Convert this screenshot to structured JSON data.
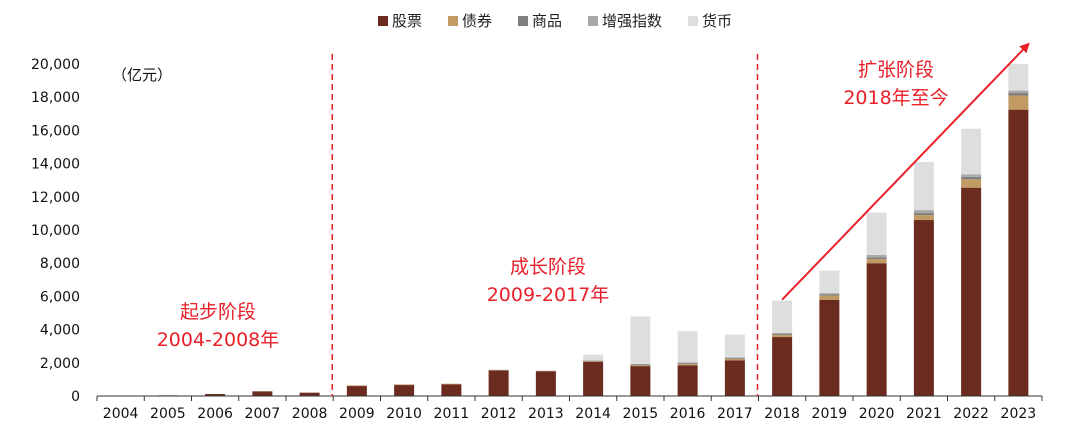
{
  "chart_data": {
    "type": "bar",
    "stacked": true,
    "unit_label": "（亿元）",
    "categories": [
      "2004",
      "2005",
      "2006",
      "2007",
      "2008",
      "2009",
      "2010",
      "2011",
      "2012",
      "2013",
      "2014",
      "2015",
      "2016",
      "2017",
      "2018",
      "2019",
      "2020",
      "2021",
      "2022",
      "2023"
    ],
    "series": [
      {
        "name": "股票",
        "color": "#6b2b1f",
        "values": [
          30,
          40,
          120,
          280,
          200,
          620,
          680,
          720,
          1560,
          1500,
          2050,
          1800,
          1850,
          2150,
          3550,
          5800,
          8000,
          10600,
          12550,
          17250
        ]
      },
      {
        "name": "债券",
        "color": "#c29a63",
        "values": [
          0,
          0,
          0,
          0,
          0,
          20,
          20,
          20,
          30,
          40,
          50,
          60,
          70,
          80,
          120,
          250,
          250,
          300,
          500,
          850
        ]
      },
      {
        "name": "商品",
        "color": "#7f7f7f",
        "values": [
          0,
          0,
          0,
          0,
          0,
          0,
          0,
          0,
          0,
          0,
          30,
          40,
          60,
          50,
          60,
          80,
          100,
          120,
          150,
          150
        ]
      },
      {
        "name": "增强指数",
        "color": "#a8a8a8",
        "values": [
          0,
          0,
          0,
          0,
          0,
          0,
          0,
          0,
          0,
          0,
          20,
          40,
          50,
          50,
          70,
          70,
          150,
          180,
          150,
          150
        ]
      },
      {
        "name": "货币",
        "color": "#dedede",
        "values": [
          0,
          0,
          0,
          0,
          0,
          0,
          0,
          0,
          10,
          10,
          350,
          2850,
          1870,
          1370,
          1950,
          1350,
          2550,
          2900,
          2750,
          1600
        ]
      }
    ],
    "ylim": [
      0,
      20000
    ],
    "yticks": [
      0,
      2000,
      4000,
      6000,
      8000,
      10000,
      12000,
      14000,
      16000,
      18000,
      20000
    ],
    "ytick_labels": [
      "0",
      "2,000",
      "4,000",
      "6,000",
      "8,000",
      "10,000",
      "12,000",
      "14,000",
      "16,000",
      "18,000",
      "20,000"
    ],
    "legend_position": "top-center",
    "grid": false,
    "annotations": {
      "phases": [
        {
          "title": "起步阶段",
          "years": "2004-2008年"
        },
        {
          "title": "成长阶段",
          "years": "2009-2017年"
        },
        {
          "title": "扩张阶段",
          "years": "2018年至今"
        }
      ],
      "divider_after_categories": [
        "2008",
        "2017"
      ],
      "trend_arrow": {
        "from": [
          "2018",
          5800
        ],
        "to": [
          "2023",
          21200
        ]
      }
    }
  }
}
